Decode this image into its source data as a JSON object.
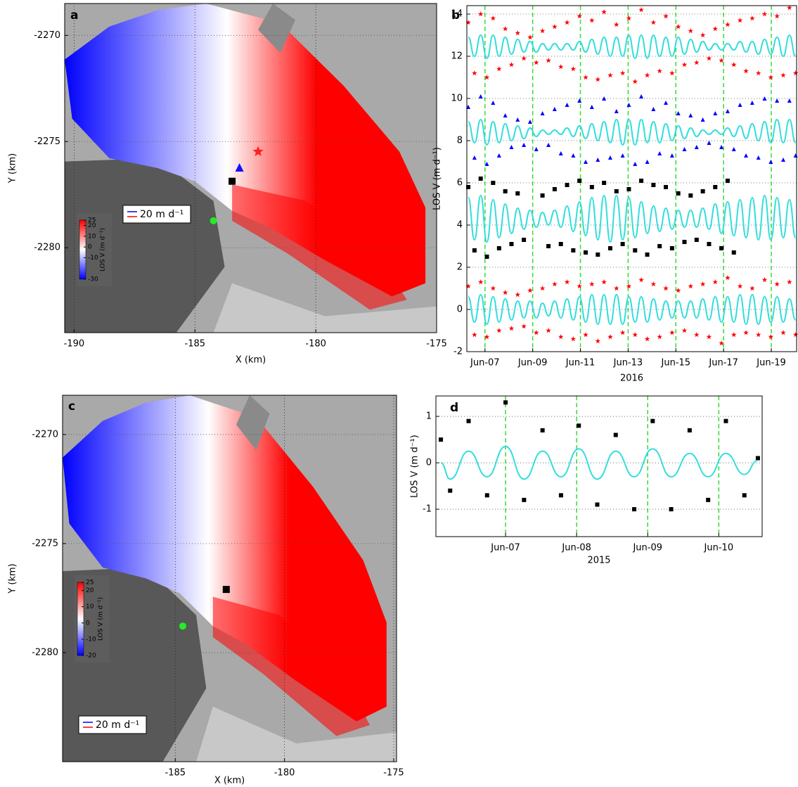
{
  "chart_data": [
    {
      "type": "map",
      "label": "a",
      "xlabel": "X (km)",
      "ylabel": "Y (km)",
      "xlim": [
        -190.39,
        -175
      ],
      "xticks": [
        -190,
        -185,
        -180,
        -175
      ],
      "ylim": [
        -2284.0,
        -2268.5
      ],
      "yticks": [
        -2270,
        -2275,
        -2280
      ],
      "grid": true,
      "colorbar": {
        "label": "LOS V (m d⁻¹)",
        "lim": [
          -30,
          25
        ],
        "ticks": [
          25,
          20,
          10,
          0,
          -10,
          -30
        ],
        "colors": [
          "#0000ff",
          "#ffffff",
          "#ff0000"
        ]
      },
      "scale_label": "20 m d⁻¹"
    },
    {
      "type": "line",
      "label": "b",
      "xlabel": "2016",
      "ylabel": "LOS V (m d⁻¹)",
      "xlim": [
        6.24,
        20.06
      ],
      "xticks": [
        {
          "value": 7,
          "label": "Jun-07"
        },
        {
          "value": 9,
          "label": "Jun-09"
        },
        {
          "value": 11,
          "label": "Jun-11"
        },
        {
          "value": 13,
          "label": "Jun-13"
        },
        {
          "value": 15,
          "label": "Jun-15"
        },
        {
          "value": 17,
          "label": "Jun-17"
        },
        {
          "value": 19,
          "label": "Jun-19"
        }
      ],
      "ylim": [
        -2,
        14.4
      ],
      "yticks": [
        -2,
        0,
        2,
        4,
        6,
        8,
        10,
        12,
        14
      ],
      "grid": true,
      "xgrid_color": "#33dd33",
      "x": [
        6.3,
        6.56,
        6.82,
        7.08,
        7.34,
        7.59,
        7.85,
        8.11,
        8.37,
        8.63,
        8.89,
        9.15,
        9.41,
        9.66,
        9.92,
        10.18,
        10.44,
        10.7,
        10.96,
        11.22,
        11.48,
        11.73,
        11.99,
        12.25,
        12.51,
        12.77,
        13.03,
        13.29,
        13.55,
        13.8,
        14.06,
        14.32,
        14.58,
        14.84,
        15.1,
        15.36,
        15.62,
        15.87,
        16.13,
        16.39,
        16.65,
        16.91,
        17.17,
        17.43,
        17.69,
        17.94,
        18.2,
        18.46,
        18.72,
        18.98,
        19.24,
        19.5,
        19.76,
        20.02
      ],
      "series": [
        {
          "style": "markers",
          "marker": "star",
          "color": "#ff0000",
          "values": [
            13.6,
            11.2,
            14.0,
            11.0,
            13.8,
            11.4,
            13.3,
            11.6,
            13.1,
            11.9,
            12.9,
            11.7,
            13.2,
            11.8,
            13.4,
            11.5,
            13.6,
            11.4,
            13.9,
            11.0,
            13.7,
            10.9,
            14.1,
            11.1,
            13.5,
            11.2,
            13.8,
            10.8,
            14.2,
            11.1,
            13.6,
            11.3,
            13.9,
            11.2,
            13.4,
            11.6,
            13.2,
            11.7,
            13.0,
            11.9,
            13.3,
            11.8,
            13.5,
            11.6,
            13.7,
            11.3,
            13.8,
            11.2,
            14.0,
            11.0,
            13.9,
            11.1,
            14.3,
            11.2
          ]
        },
        {
          "style": "markers",
          "marker": "triangle",
          "color": "#0000ff",
          "values": [
            9.6,
            7.2,
            10.1,
            6.9,
            9.8,
            7.3,
            9.2,
            7.7,
            9.0,
            7.8,
            8.9,
            7.6,
            9.3,
            7.8,
            9.5,
            7.4,
            9.7,
            7.3,
            9.9,
            7.0,
            9.6,
            7.1,
            10.0,
            7.2,
            9.4,
            7.3,
            9.7,
            6.9,
            10.1,
            7.0,
            9.5,
            7.4,
            9.8,
            7.3,
            9.3,
            7.6,
            9.2,
            7.7,
            9.0,
            7.9,
            9.3,
            7.7,
            9.4,
            7.6,
            9.7,
            7.3,
            9.8,
            7.2,
            10.0,
            7.0,
            9.9,
            7.1,
            9.9,
            7.3
          ]
        },
        {
          "style": "markers",
          "marker": "square",
          "color": "#000000",
          "values": [
            5.8,
            2.8,
            6.2,
            2.5,
            6.0,
            2.9,
            5.6,
            3.1,
            5.5,
            3.3,
            null,
            null,
            5.4,
            3.0,
            5.7,
            3.1,
            5.9,
            2.8,
            6.1,
            2.7,
            5.8,
            2.6,
            6.0,
            2.9,
            5.6,
            3.1,
            5.7,
            2.8,
            6.1,
            2.6,
            5.9,
            3.0,
            5.8,
            2.9,
            5.5,
            3.2,
            5.4,
            3.3,
            5.6,
            3.1,
            5.8,
            2.9,
            6.1,
            2.7,
            null,
            null,
            null,
            null,
            null,
            null,
            null,
            null,
            null,
            null
          ]
        },
        {
          "style": "markers",
          "marker": "star",
          "color": "#ff0000",
          "values": [
            1.1,
            -1.2,
            1.3,
            -1.3,
            1.0,
            -1.0,
            0.8,
            -0.9,
            0.7,
            -0.8,
            0.9,
            -1.1,
            1.0,
            -1.0,
            1.2,
            -1.3,
            1.3,
            -1.4,
            1.1,
            -1.2,
            1.2,
            -1.5,
            1.3,
            -1.3,
            1.0,
            -1.1,
            1.1,
            -1.2,
            1.4,
            -1.4,
            1.2,
            -1.3,
            1.0,
            -1.1,
            0.9,
            -1.0,
            1.1,
            -1.2,
            1.2,
            -1.3,
            1.3,
            -1.6,
            1.5,
            -1.2,
            1.1,
            -1.1,
            1.0,
            -1.2,
            1.4,
            -1.3,
            1.2,
            -1.1,
            1.3,
            -1.2
          ]
        },
        {
          "style": "line",
          "color": "#33dddd",
          "values": [
            12.9,
            12.0,
            13.0,
            11.9,
            13.0,
            12.0,
            12.9,
            12.1,
            12.8,
            12.2,
            12.7,
            12.2,
            12.6,
            12.3,
            12.6,
            12.3,
            12.6,
            12.3,
            12.7,
            12.2,
            12.8,
            12.1,
            12.9,
            12.0,
            12.9,
            12.0,
            13.0,
            11.9,
            13.0,
            11.9,
            13.0,
            12.0,
            12.9,
            12.0,
            12.9,
            12.1,
            12.8,
            12.2,
            12.7,
            12.3,
            12.6,
            12.3,
            12.6,
            12.3,
            12.7,
            12.2,
            12.7,
            12.1,
            12.8,
            12.1,
            12.9,
            12.0,
            13.0,
            12.0
          ]
        },
        {
          "style": "line",
          "color": "#33dddd",
          "values": [
            8.9,
            7.9,
            9.0,
            7.8,
            8.9,
            7.9,
            8.8,
            8.0,
            8.7,
            8.1,
            8.6,
            8.2,
            8.5,
            8.3,
            8.5,
            8.3,
            8.6,
            8.2,
            8.7,
            8.1,
            8.8,
            8.0,
            8.9,
            7.9,
            9.0,
            7.8,
            9.0,
            7.8,
            9.0,
            7.9,
            8.9,
            7.9,
            8.8,
            8.0,
            8.7,
            8.1,
            8.6,
            8.2,
            8.5,
            8.3,
            8.5,
            8.3,
            8.6,
            8.2,
            8.7,
            8.1,
            8.8,
            8.0,
            8.9,
            7.9,
            9.0,
            7.9,
            9.0,
            7.9
          ]
        },
        {
          "style": "line",
          "color": "#33dddd",
          "values": [
            5.3,
            3.3,
            5.4,
            3.2,
            5.2,
            3.4,
            5.0,
            3.6,
            4.8,
            3.8,
            4.7,
            3.9,
            4.6,
            4.0,
            4.7,
            3.9,
            4.9,
            3.7,
            5.1,
            3.5,
            5.3,
            3.3,
            5.4,
            3.2,
            5.4,
            3.3,
            5.3,
            3.4,
            5.1,
            3.6,
            4.9,
            3.7,
            4.8,
            3.8,
            4.7,
            3.9,
            4.7,
            3.9,
            4.8,
            3.8,
            5.0,
            3.6,
            5.1,
            3.5,
            5.2,
            3.4,
            5.3,
            3.3,
            5.4,
            3.3,
            5.3,
            3.4,
            5.2,
            3.4
          ]
        },
        {
          "style": "line",
          "color": "#33dddd",
          "values": [
            0.6,
            -0.6,
            0.7,
            -0.7,
            0.6,
            -0.6,
            0.5,
            -0.5,
            0.4,
            -0.4,
            0.4,
            -0.4,
            0.3,
            -0.3,
            0.4,
            -0.4,
            0.5,
            -0.5,
            0.6,
            -0.6,
            0.7,
            -0.7,
            0.7,
            -0.7,
            0.7,
            -0.7,
            0.6,
            -0.6,
            0.6,
            -0.6,
            0.5,
            -0.5,
            0.4,
            -0.4,
            0.4,
            -0.4,
            0.4,
            -0.4,
            0.5,
            -0.5,
            0.6,
            -0.6,
            0.6,
            -0.6,
            0.7,
            -0.7,
            0.7,
            -0.7,
            0.6,
            -0.6,
            0.6,
            -0.6,
            0.5,
            -0.5
          ]
        }
      ]
    },
    {
      "type": "map",
      "label": "c",
      "xlabel": "X (km)",
      "ylabel": "Y (km)",
      "xlim": [
        -190.16,
        -174.87
      ],
      "xticks": [
        -185,
        -180,
        -175
      ],
      "ylim": [
        -2285.0,
        -2268.2
      ],
      "yticks": [
        -2270,
        -2275,
        -2280
      ],
      "grid": true,
      "colorbar": {
        "label": "LOS V (m d⁻¹)",
        "lim": [
          -20,
          25
        ],
        "ticks": [
          25,
          20,
          10,
          0,
          -10,
          -20
        ],
        "colors": [
          "#0000ff",
          "#ffffff",
          "#ff0000"
        ]
      },
      "scale_label": "20 m d⁻¹"
    },
    {
      "type": "line",
      "label": "d",
      "xlabel": "2015",
      "ylabel": "LOS V (m d⁻¹)",
      "xlim": [
        6.02,
        10.61
      ],
      "xticks": [
        {
          "value": 7,
          "label": "Jun-07"
        },
        {
          "value": 8,
          "label": "Jun-08"
        },
        {
          "value": 9,
          "label": "Jun-09"
        },
        {
          "value": 10,
          "label": "Jun-10"
        }
      ],
      "ylim": [
        -1.59,
        1.44
      ],
      "yticks": [
        -1,
        0,
        1
      ],
      "grid": true,
      "xgrid_color": "#33dd33",
      "x": [
        6.09,
        6.22,
        6.48,
        6.74,
        7.0,
        7.26,
        7.52,
        7.78,
        8.03,
        8.29,
        8.55,
        8.81,
        9.07,
        9.33,
        9.59,
        9.85,
        10.1,
        10.36,
        10.55
      ],
      "series": [
        {
          "style": "markers",
          "marker": "square",
          "color": "#000000",
          "values": [
            0.5,
            -0.6,
            0.9,
            -0.7,
            1.3,
            -0.8,
            0.7,
            -0.7,
            0.8,
            -0.9,
            0.6,
            -1.0,
            0.9,
            -1.0,
            0.7,
            -0.8,
            0.9,
            -0.7,
            0.1
          ]
        },
        {
          "style": "line",
          "color": "#33dddd",
          "values": [
            0.0,
            -0.35,
            0.25,
            -0.3,
            0.35,
            -0.35,
            0.25,
            -0.3,
            0.3,
            -0.35,
            0.25,
            -0.3,
            0.3,
            -0.3,
            0.2,
            -0.3,
            0.2,
            -0.25,
            0.05
          ]
        }
      ]
    }
  ]
}
